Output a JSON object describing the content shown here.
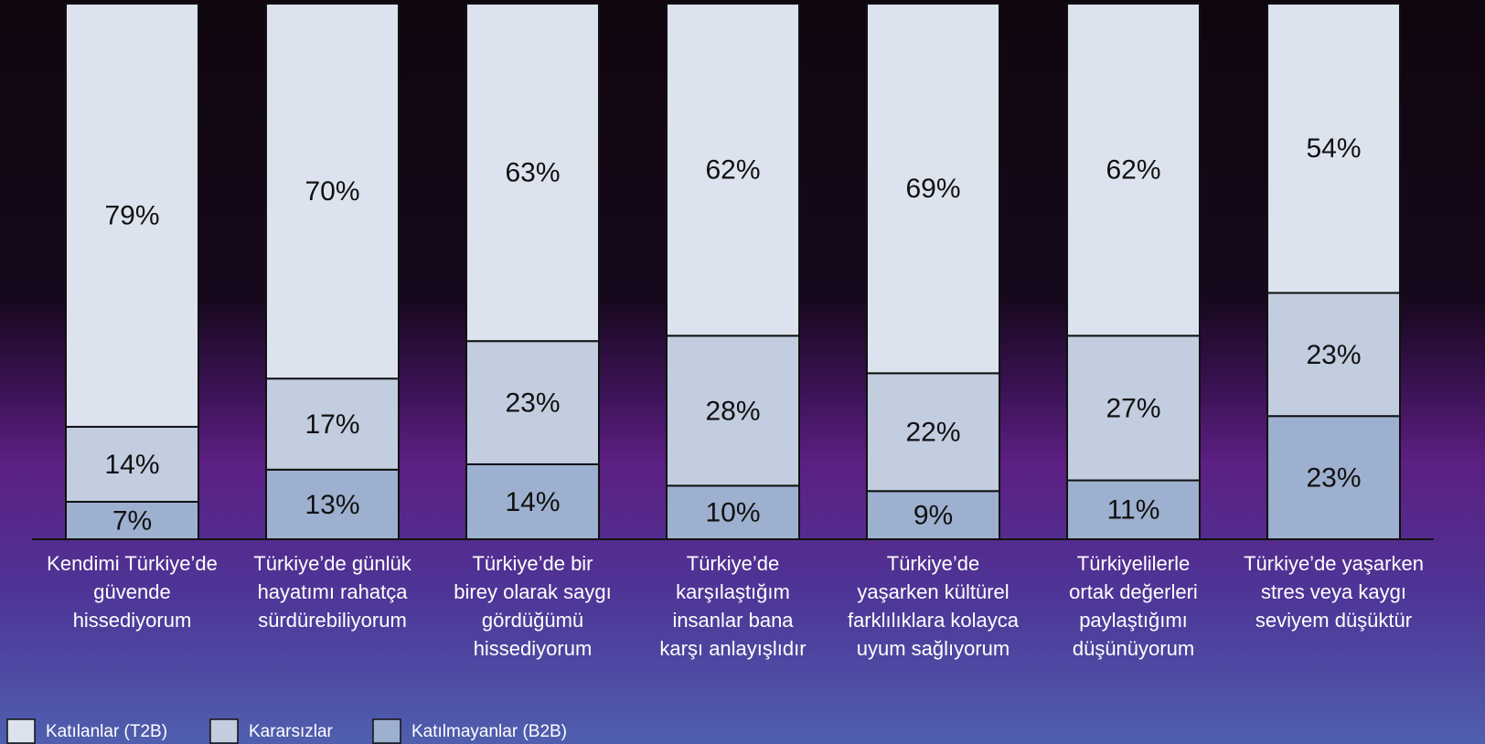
{
  "chart_data": {
    "type": "stacked_bar",
    "categories": [
      [
        "Kendimi Türkiye’de",
        "güvende",
        "hissediyorum"
      ],
      [
        "Türkiye’de günlük",
        "hayatımı rahatça",
        "sürdürebiliyorum"
      ],
      [
        "Türkiye’de bir",
        "birey olarak saygı",
        "gördüğümü",
        "hissediyorum"
      ],
      [
        "Türkiye’de",
        "karşılaştığım",
        "insanlar bana",
        "karşı anlayışlıdır"
      ],
      [
        "Türkiye’de",
        "yaşarken kültürel",
        "farklılıklara kolayca",
        "uyum sağlıyorum"
      ],
      [
        "Türkiyelilerle",
        "ortak değerleri",
        "paylaştığımı",
        "düşünüyorum"
      ],
      [
        "Türkiye’de yaşarken",
        "stres veya kaygı",
        "seviyem düşüktür"
      ]
    ],
    "series": [
      {
        "name": "Katılanlar (T2B)",
        "color": "#dde3ee",
        "values": [
          79,
          70,
          63,
          62,
          69,
          62,
          54
        ],
        "value_labels": [
          "79%",
          "70%",
          "63%",
          "62%",
          "69%",
          "62%",
          "54%"
        ]
      },
      {
        "name": "Kararsızlar",
        "color": "#c3cde0",
        "values": [
          14,
          17,
          23,
          28,
          22,
          27,
          23
        ],
        "value_labels": [
          "14%",
          "17%",
          "23%",
          "28%",
          "22%",
          "27%",
          "23%"
        ]
      },
      {
        "name": "Katılmayanlar (B2B)",
        "color": "#9eb0cf",
        "values": [
          7,
          13,
          14,
          10,
          9,
          11,
          23
        ],
        "value_labels": [
          "7%",
          "13%",
          "14%",
          "10%",
          "9%",
          "11%",
          "23%"
        ]
      }
    ],
    "ylim": [
      0,
      100
    ],
    "legend": "bottom-left"
  }
}
